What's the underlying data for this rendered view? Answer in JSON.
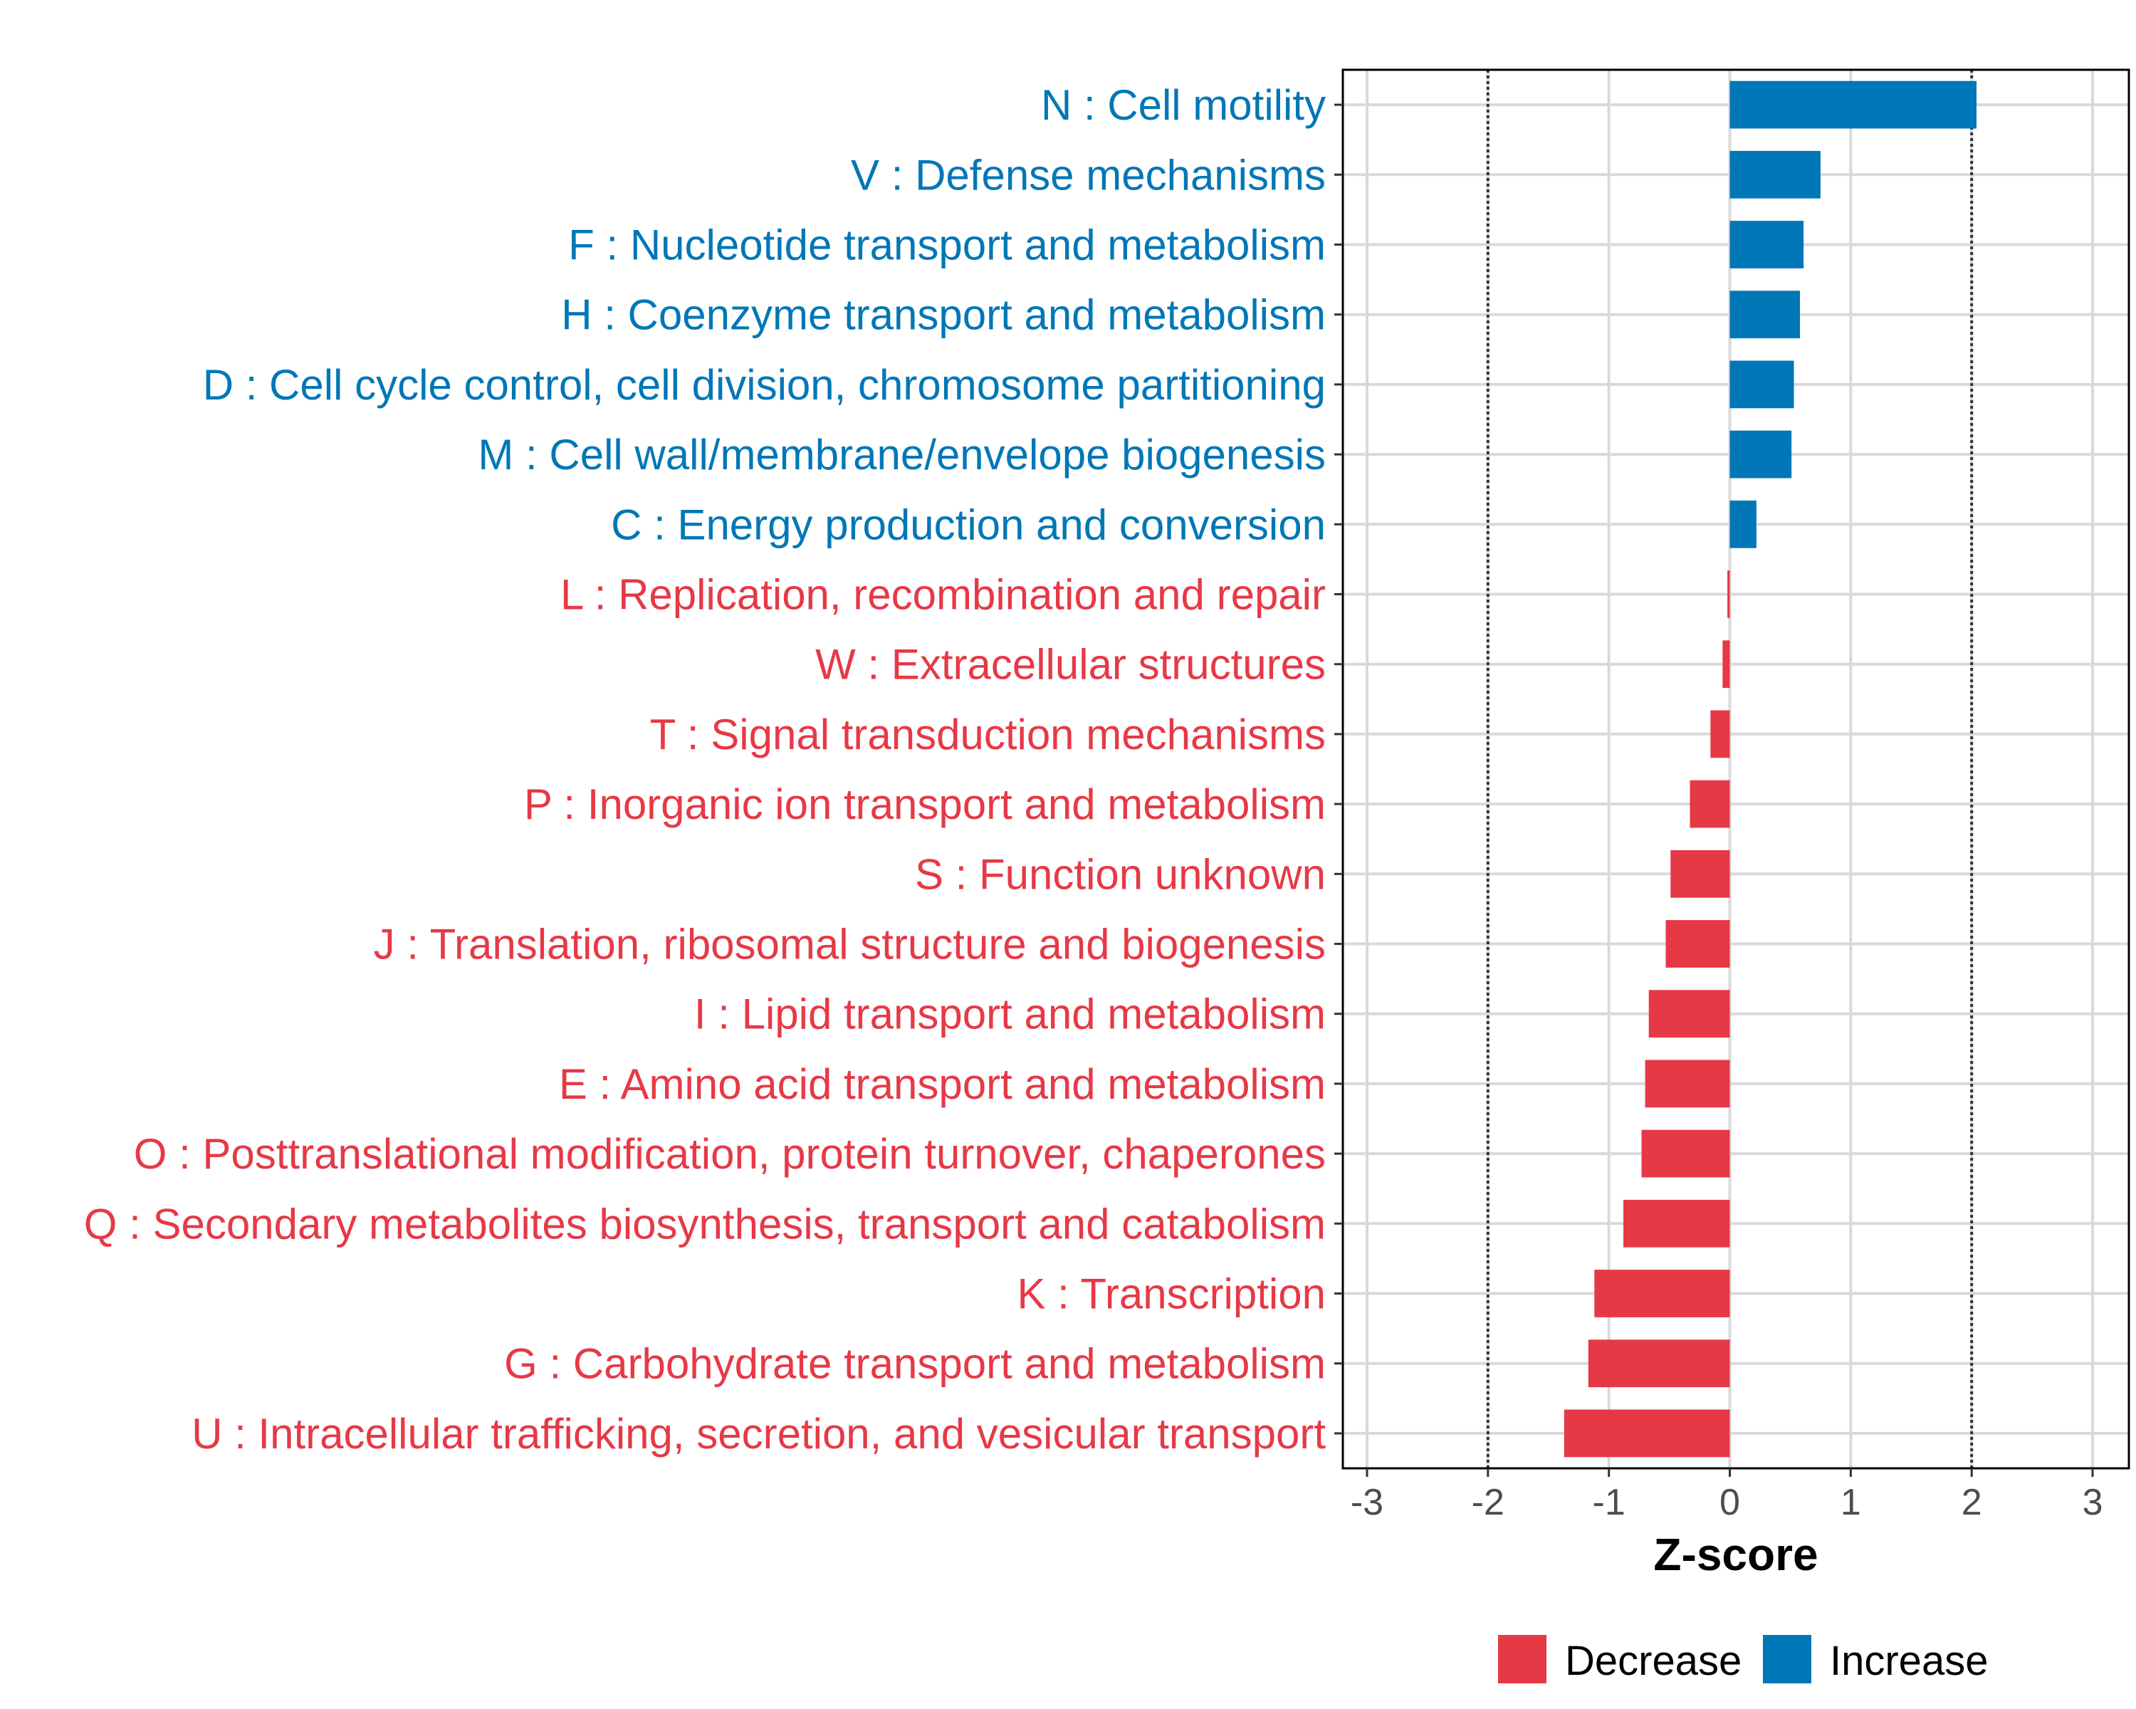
{
  "chart_data": {
    "type": "bar",
    "orientation": "horizontal",
    "title": "",
    "xlabel": "Z-score",
    "ylabel": "",
    "xlim": [
      -3.2,
      3.3
    ],
    "xticks": [
      -3,
      -2,
      -1,
      0,
      1,
      2,
      3
    ],
    "xtick_labels": [
      "-3",
      "-2",
      "-1",
      "0",
      "1",
      "2",
      "3"
    ],
    "reference_lines": [
      -2,
      2
    ],
    "grid": true,
    "legend_position": "bottom",
    "legend": [
      {
        "name": "Decrease",
        "color": "#E63946"
      },
      {
        "name": "Increase",
        "color": "#0077B6"
      }
    ],
    "categories": [
      "N : Cell motility",
      "V : Defense mechanisms",
      "F : Nucleotide transport and metabolism",
      "H : Coenzyme transport and metabolism",
      "D : Cell cycle control, cell division, chromosome partitioning",
      "M : Cell wall/membrane/envelope biogenesis",
      "C : Energy production and conversion",
      "L : Replication, recombination and repair",
      "W : Extracellular structures",
      "T : Signal transduction mechanisms",
      "P : Inorganic ion transport and metabolism",
      "S : Function unknown",
      "J : Translation, ribosomal structure and biogenesis",
      "I : Lipid transport and metabolism",
      "E : Amino acid transport and metabolism",
      "O : Posttranslational modification, protein turnover, chaperones",
      "Q : Secondary metabolites biosynthesis, transport and catabolism",
      "K : Transcription",
      "G : Carbohydrate transport and metabolism",
      "U : Intracellular trafficking, secretion, and vesicular transport"
    ],
    "values": [
      2.04,
      0.75,
      0.61,
      0.58,
      0.53,
      0.51,
      0.22,
      -0.02,
      -0.06,
      -0.16,
      -0.33,
      -0.49,
      -0.53,
      -0.67,
      -0.7,
      -0.73,
      -0.88,
      -1.12,
      -1.17,
      -1.37
    ],
    "groups": [
      "Increase",
      "Increase",
      "Increase",
      "Increase",
      "Increase",
      "Increase",
      "Increase",
      "Decrease",
      "Decrease",
      "Decrease",
      "Decrease",
      "Decrease",
      "Decrease",
      "Decrease",
      "Decrease",
      "Decrease",
      "Decrease",
      "Decrease",
      "Decrease",
      "Decrease"
    ]
  }
}
